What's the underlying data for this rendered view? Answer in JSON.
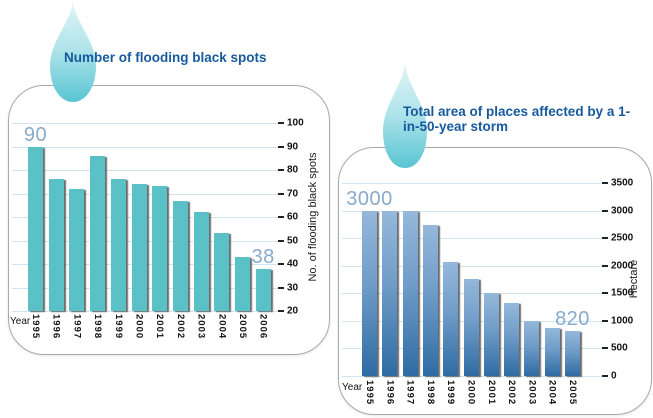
{
  "page": {
    "background": "#ffffff"
  },
  "colors": {
    "title_blue": "#175a9d",
    "callout_blue": "#88aacd",
    "teal_bar": "#5ac1c7",
    "blue_bar_top": "#95b8db",
    "blue_bar_bottom": "#2e6ba3",
    "gridline": "#cfe4f2",
    "panel_border": "#a9a9a9",
    "droplet_light": "#dff4f7",
    "droplet_dark": "#58c5d2"
  },
  "chart_data": [
    {
      "type": "bar",
      "title": "Number of flooding black spots",
      "xlabel": "Year",
      "ylabel": "No. of flooding black spots",
      "categories": [
        "1995",
        "1996",
        "1997",
        "1998",
        "1999",
        "2000",
        "2001",
        "2002",
        "2003",
        "2004",
        "2005",
        "2006"
      ],
      "values": [
        90,
        76,
        72,
        86,
        76,
        74,
        73,
        67,
        62,
        53,
        43,
        38
      ],
      "ylim": [
        20,
        100
      ],
      "yticks": [
        20,
        30,
        40,
        50,
        60,
        70,
        80,
        90,
        100
      ],
      "grid": true,
      "legend": false,
      "bar_style": "teal",
      "data_labels": [
        {
          "index": 0,
          "text": "90"
        },
        {
          "index": 11,
          "text": "38"
        }
      ]
    },
    {
      "type": "bar",
      "title": "Total area of places affected by a 1-in-50-year storm",
      "xlabel": "Year",
      "ylabel": "Hectare",
      "categories": [
        "1995",
        "1996",
        "1997",
        "1998",
        "1999",
        "2000",
        "2001",
        "2002",
        "2003",
        "2004",
        "2005"
      ],
      "values": [
        3000,
        3000,
        3000,
        2740,
        2060,
        1760,
        1510,
        1320,
        990,
        870,
        820
      ],
      "ylim": [
        0,
        3500
      ],
      "yticks": [
        0,
        500,
        1000,
        1500,
        2000,
        2500,
        3000,
        3500
      ],
      "grid": true,
      "legend": false,
      "bar_style": "blue",
      "data_labels": [
        {
          "index": 0,
          "text": "3000"
        },
        {
          "index": 10,
          "text": "820"
        }
      ]
    }
  ]
}
